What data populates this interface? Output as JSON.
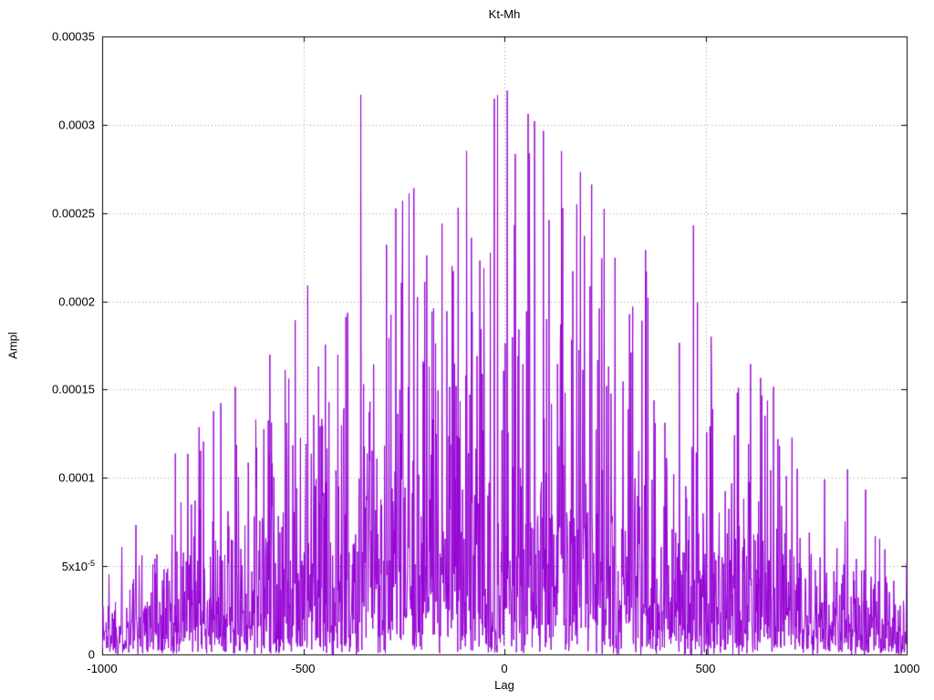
{
  "chart_data": {
    "type": "line",
    "title": "Kt-Mh",
    "xlabel": "Lag",
    "ylabel": "Ampl",
    "xlim": [
      -1000,
      1000
    ],
    "ylim": [
      0,
      0.00035
    ],
    "grid": "dotted",
    "legend": "none",
    "line_color": "#9400d3",
    "grid_color": "#9b9b9b",
    "border_color": "#000000",
    "xticks": [
      {
        "value": -1000,
        "label": "-1000"
      },
      {
        "value": -500,
        "label": "-500"
      },
      {
        "value": 0,
        "label": "0"
      },
      {
        "value": 500,
        "label": "500"
      },
      {
        "value": 1000,
        "label": "1000"
      }
    ],
    "yticks": [
      {
        "value": 0,
        "label": "0"
      },
      {
        "value": 5e-05,
        "label": "5x10^-5"
      },
      {
        "value": 0.0001,
        "label": "0.0001"
      },
      {
        "value": 0.00015,
        "label": "0.00015"
      },
      {
        "value": 0.0002,
        "label": "0.0002"
      },
      {
        "value": 0.00025,
        "label": "0.00025"
      },
      {
        "value": 0.0003,
        "label": "0.0003"
      },
      {
        "value": 0.00035,
        "label": "0.00035"
      }
    ],
    "series": {
      "name": "Kt-Mh",
      "description": "Dense noisy cross-correlation amplitude vs lag (-1000..1000, step 1); roughly triangular envelope peaking near lag 0 at ~0.00025 and falling to ~0.00005 at the edges; isolated spikes listed in notable_peaks",
      "notable_peaks": [
        {
          "x": -357,
          "y": 0.000317
        },
        {
          "x": 111,
          "y": 0.000246
        },
        {
          "x": -155,
          "y": 0.000244
        },
        {
          "x": 470,
          "y": 0.000243
        },
        {
          "x": -82,
          "y": 0.000236
        },
        {
          "x": -293,
          "y": 0.000232
        },
        {
          "x": 170,
          "y": 0.000217
        },
        {
          "x": -198,
          "y": 0.000211
        },
        {
          "x": -489,
          "y": 0.000209
        },
        {
          "x": 357,
          "y": 0.000202
        },
        {
          "x": 236,
          "y": 0.000196
        },
        {
          "x": 514,
          "y": 0.00018
        },
        {
          "x": 582,
          "y": 0.000151
        },
        {
          "x": -618,
          "y": 0.000133
        },
        {
          "x": 680,
          "y": 0.000122
        }
      ],
      "generation": {
        "seed": 1337,
        "x_start": -1000,
        "x_end": 1000,
        "x_step": 1,
        "base": 5.2e-05,
        "amp": 0.000195,
        "envelope_power": 1.0,
        "lambda": 3.2,
        "cap": 1.3
      }
    }
  }
}
